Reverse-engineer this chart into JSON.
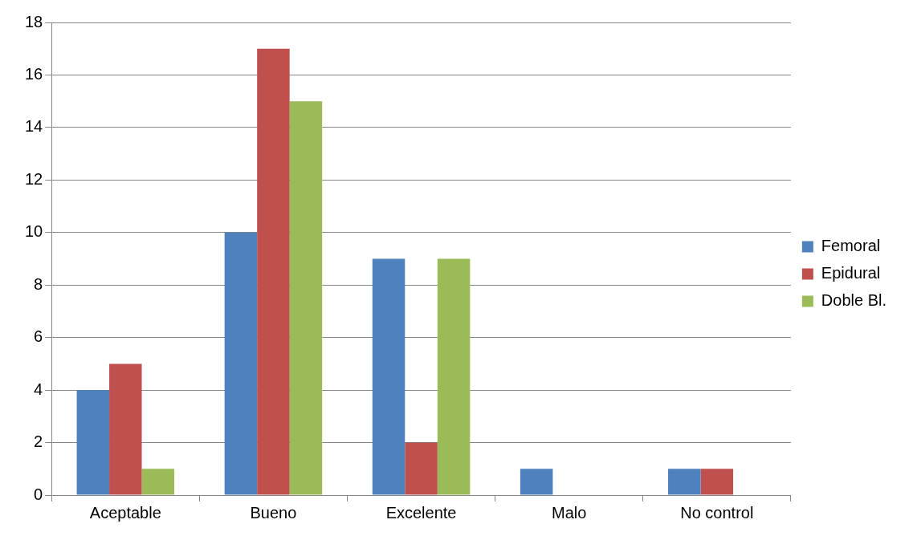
{
  "chart_data": {
    "type": "bar",
    "categories": [
      "Aceptable",
      "Bueno",
      "Excelente",
      "Malo",
      "No control"
    ],
    "series": [
      {
        "name": "Femoral",
        "color": "#4f81bd",
        "values": [
          4,
          10,
          9,
          1,
          1
        ]
      },
      {
        "name": "Epidural",
        "color": "#c0504d",
        "values": [
          5,
          17,
          2,
          0,
          1
        ]
      },
      {
        "name": "Doble Bl.",
        "color": "#9bbb59",
        "values": [
          1,
          15,
          9,
          0,
          0
        ]
      }
    ],
    "ylim": [
      0,
      18
    ],
    "yticks": [
      0,
      2,
      4,
      6,
      8,
      10,
      12,
      14,
      16,
      18
    ],
    "grid": "y",
    "legend": "right"
  }
}
